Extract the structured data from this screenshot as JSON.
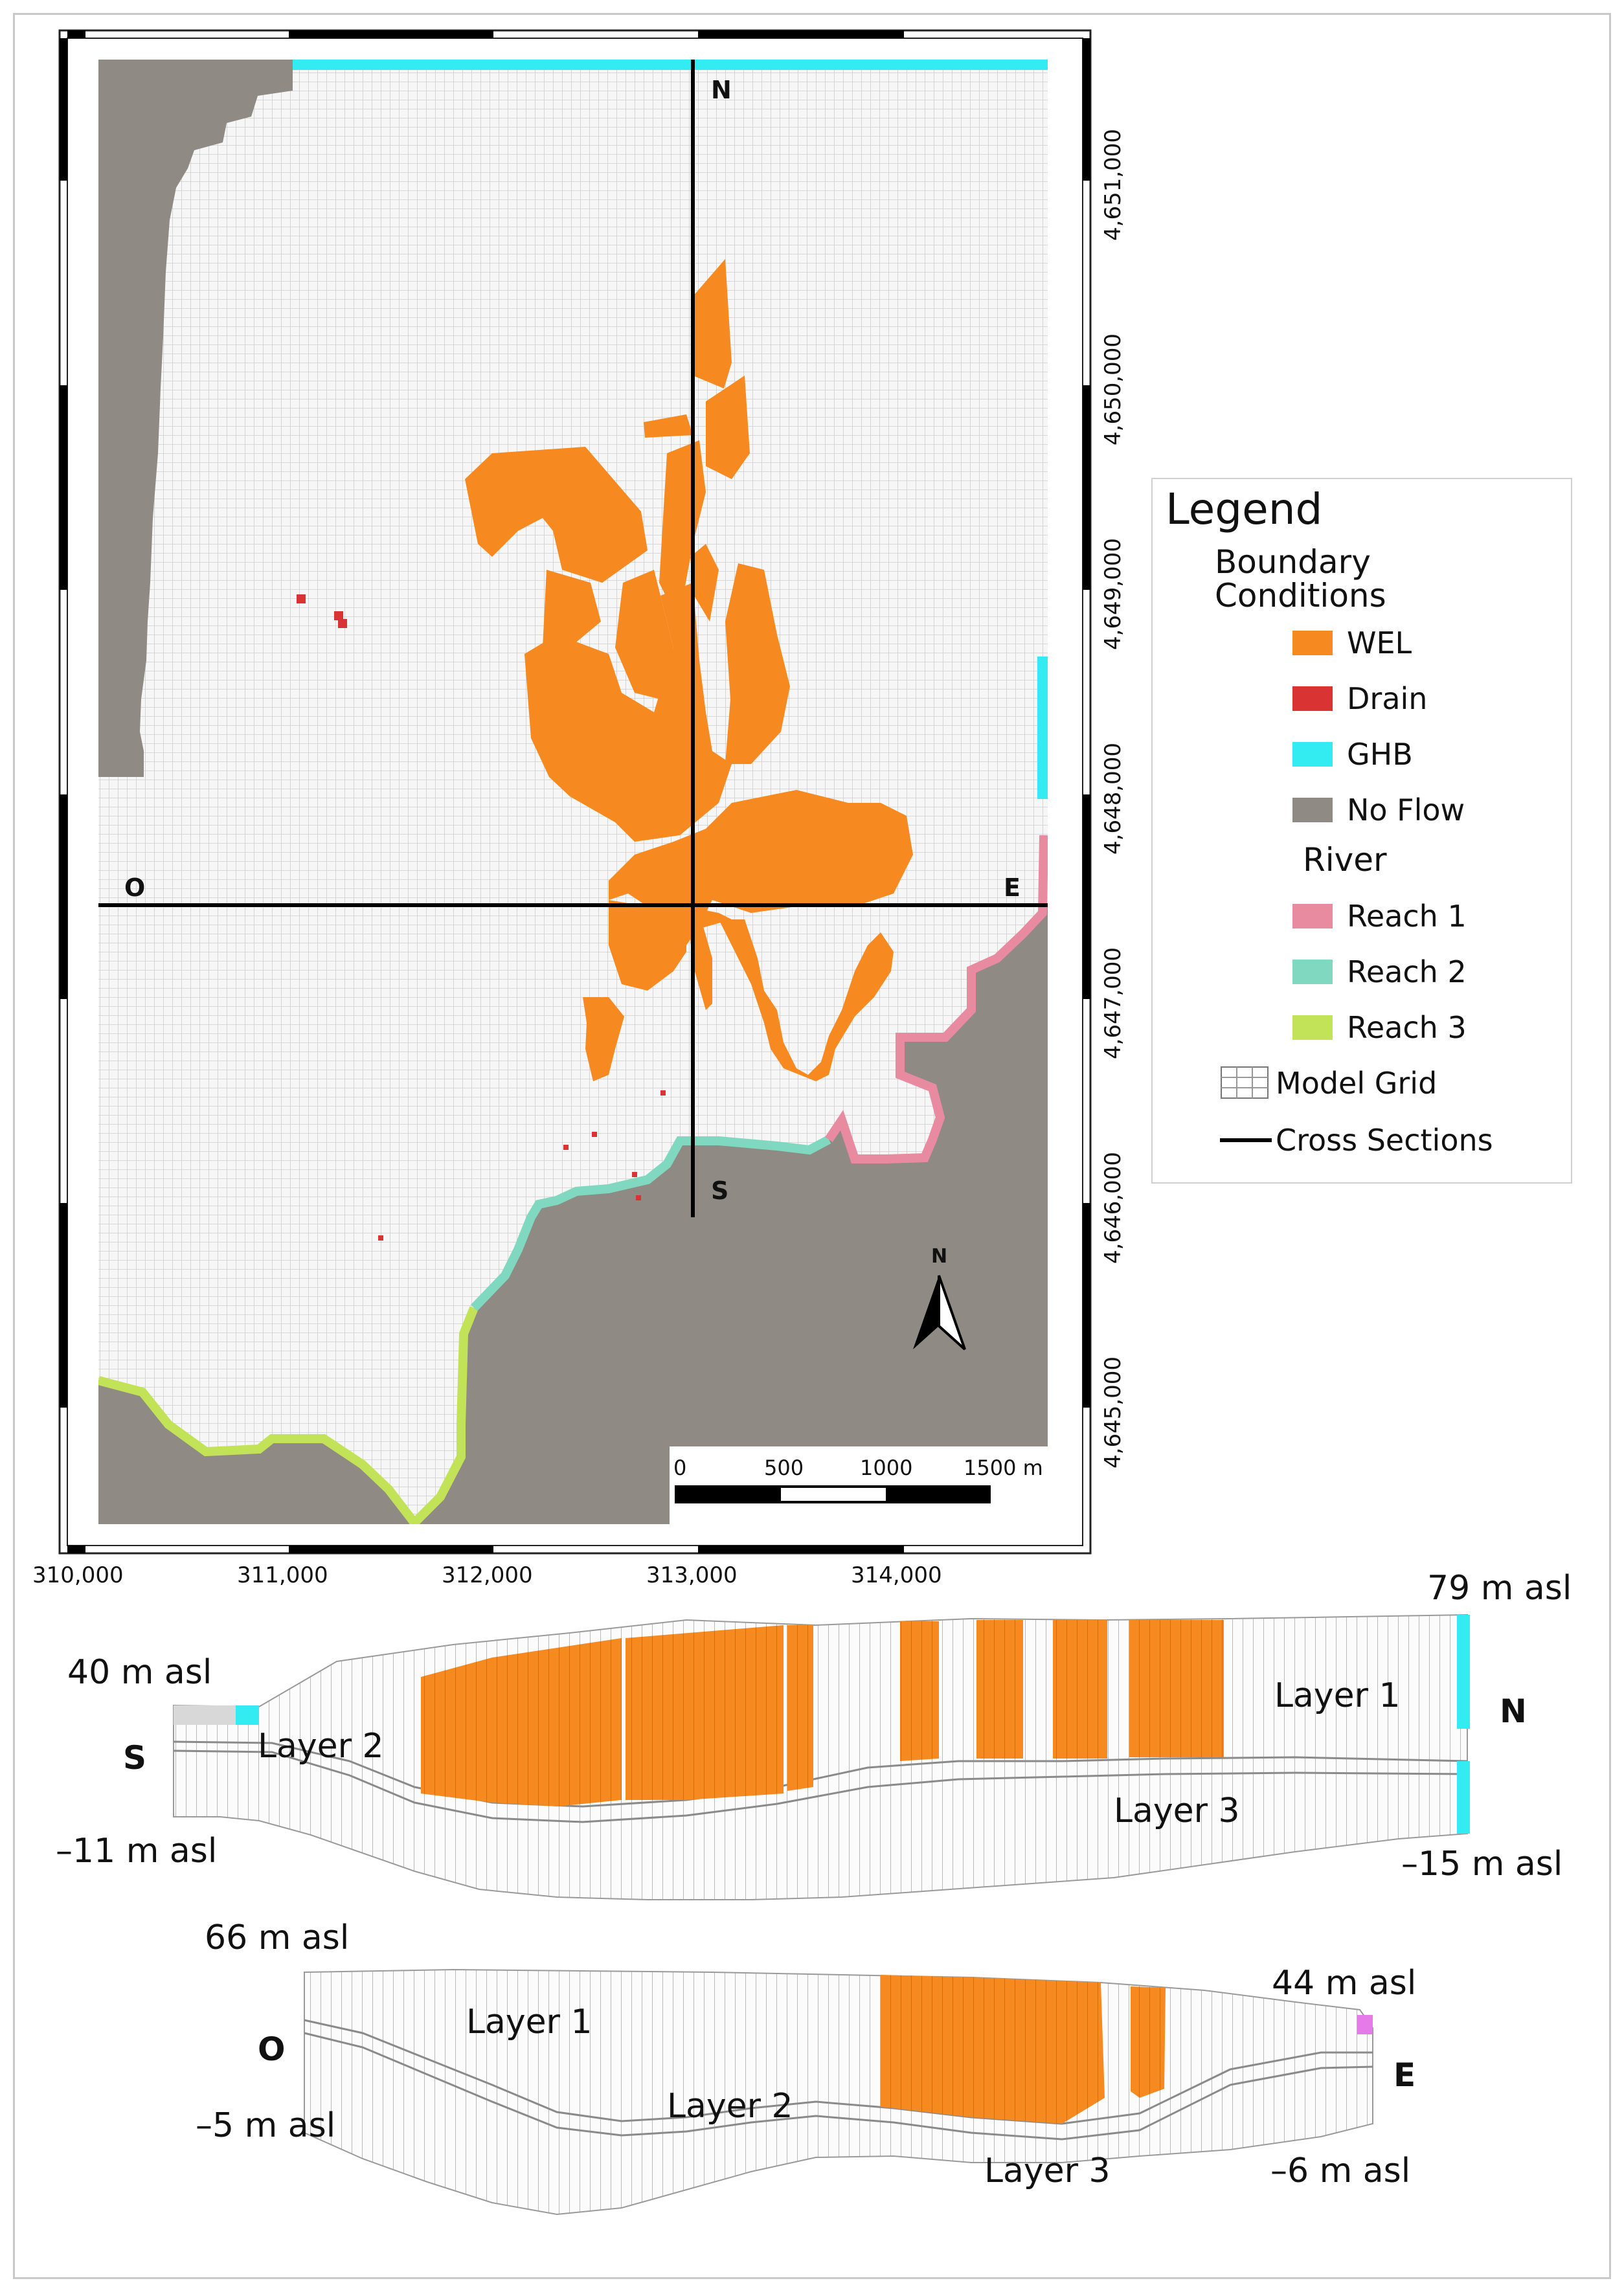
{
  "map": {
    "x_ticks": [
      "310,000",
      "311,000",
      "312,000",
      "313,000",
      "314,000"
    ],
    "y_ticks": [
      "4,651,000",
      "4,650,000",
      "4,649,000",
      "4,648,000",
      "4,647,000",
      "4,646,000",
      "4,645,000"
    ],
    "section_labels": {
      "north": "N",
      "south": "S",
      "west": "O",
      "east": "E"
    },
    "north_arrow": {
      "label": "N",
      "icon": "north-arrow-icon"
    },
    "scale_bar": {
      "ticks": [
        "0",
        "500",
        "1000",
        "1500 m"
      ]
    }
  },
  "legend": {
    "title": "Legend",
    "boundary_heading": "Boundary\nConditions",
    "boundary_items": [
      {
        "label": "WEL",
        "color": "#f6891f"
      },
      {
        "label": "Drain",
        "color": "#d93333"
      },
      {
        "label": "GHB",
        "color": "#33ecf2"
      },
      {
        "label": "No Flow",
        "color": "#8f8a83"
      }
    ],
    "river_heading": "River",
    "river_items": [
      {
        "label": "Reach 1",
        "color": "#e88aa0"
      },
      {
        "label": "Reach 2",
        "color": "#7fd8bf"
      },
      {
        "label": "Reach 3",
        "color": "#c2e358"
      }
    ],
    "grid_label": "Model Grid",
    "sections_label": "Cross Sections"
  },
  "section_sn": {
    "left_end": "S",
    "right_end": "N",
    "top_left": "40 m asl",
    "bottom_left": "–11 m asl",
    "top_right": "79 m asl",
    "bottom_right": "–15 m asl",
    "layer1": "Layer 1",
    "layer2": "Layer 2",
    "layer3": "Layer 3"
  },
  "section_oe": {
    "left_end": "O",
    "right_end": "E",
    "top_left": "66 m asl",
    "bottom_left": "–5 m asl",
    "top_right": "44 m asl",
    "bottom_right": "–6 m asl",
    "layer1": "Layer 1",
    "layer2": "Layer 2",
    "layer3": "Layer 3"
  },
  "colors": {
    "wel": "#f6891f",
    "drain": "#d93333",
    "ghb": "#33ecf2",
    "noflow": "#8f8a83",
    "reach1": "#e88aa0",
    "reach2": "#7fd8bf",
    "reach3": "#c2e358",
    "grid_line": "#cfcfcf",
    "grid_bg": "#f5f5f5",
    "east_cell": "#e57ae8"
  }
}
